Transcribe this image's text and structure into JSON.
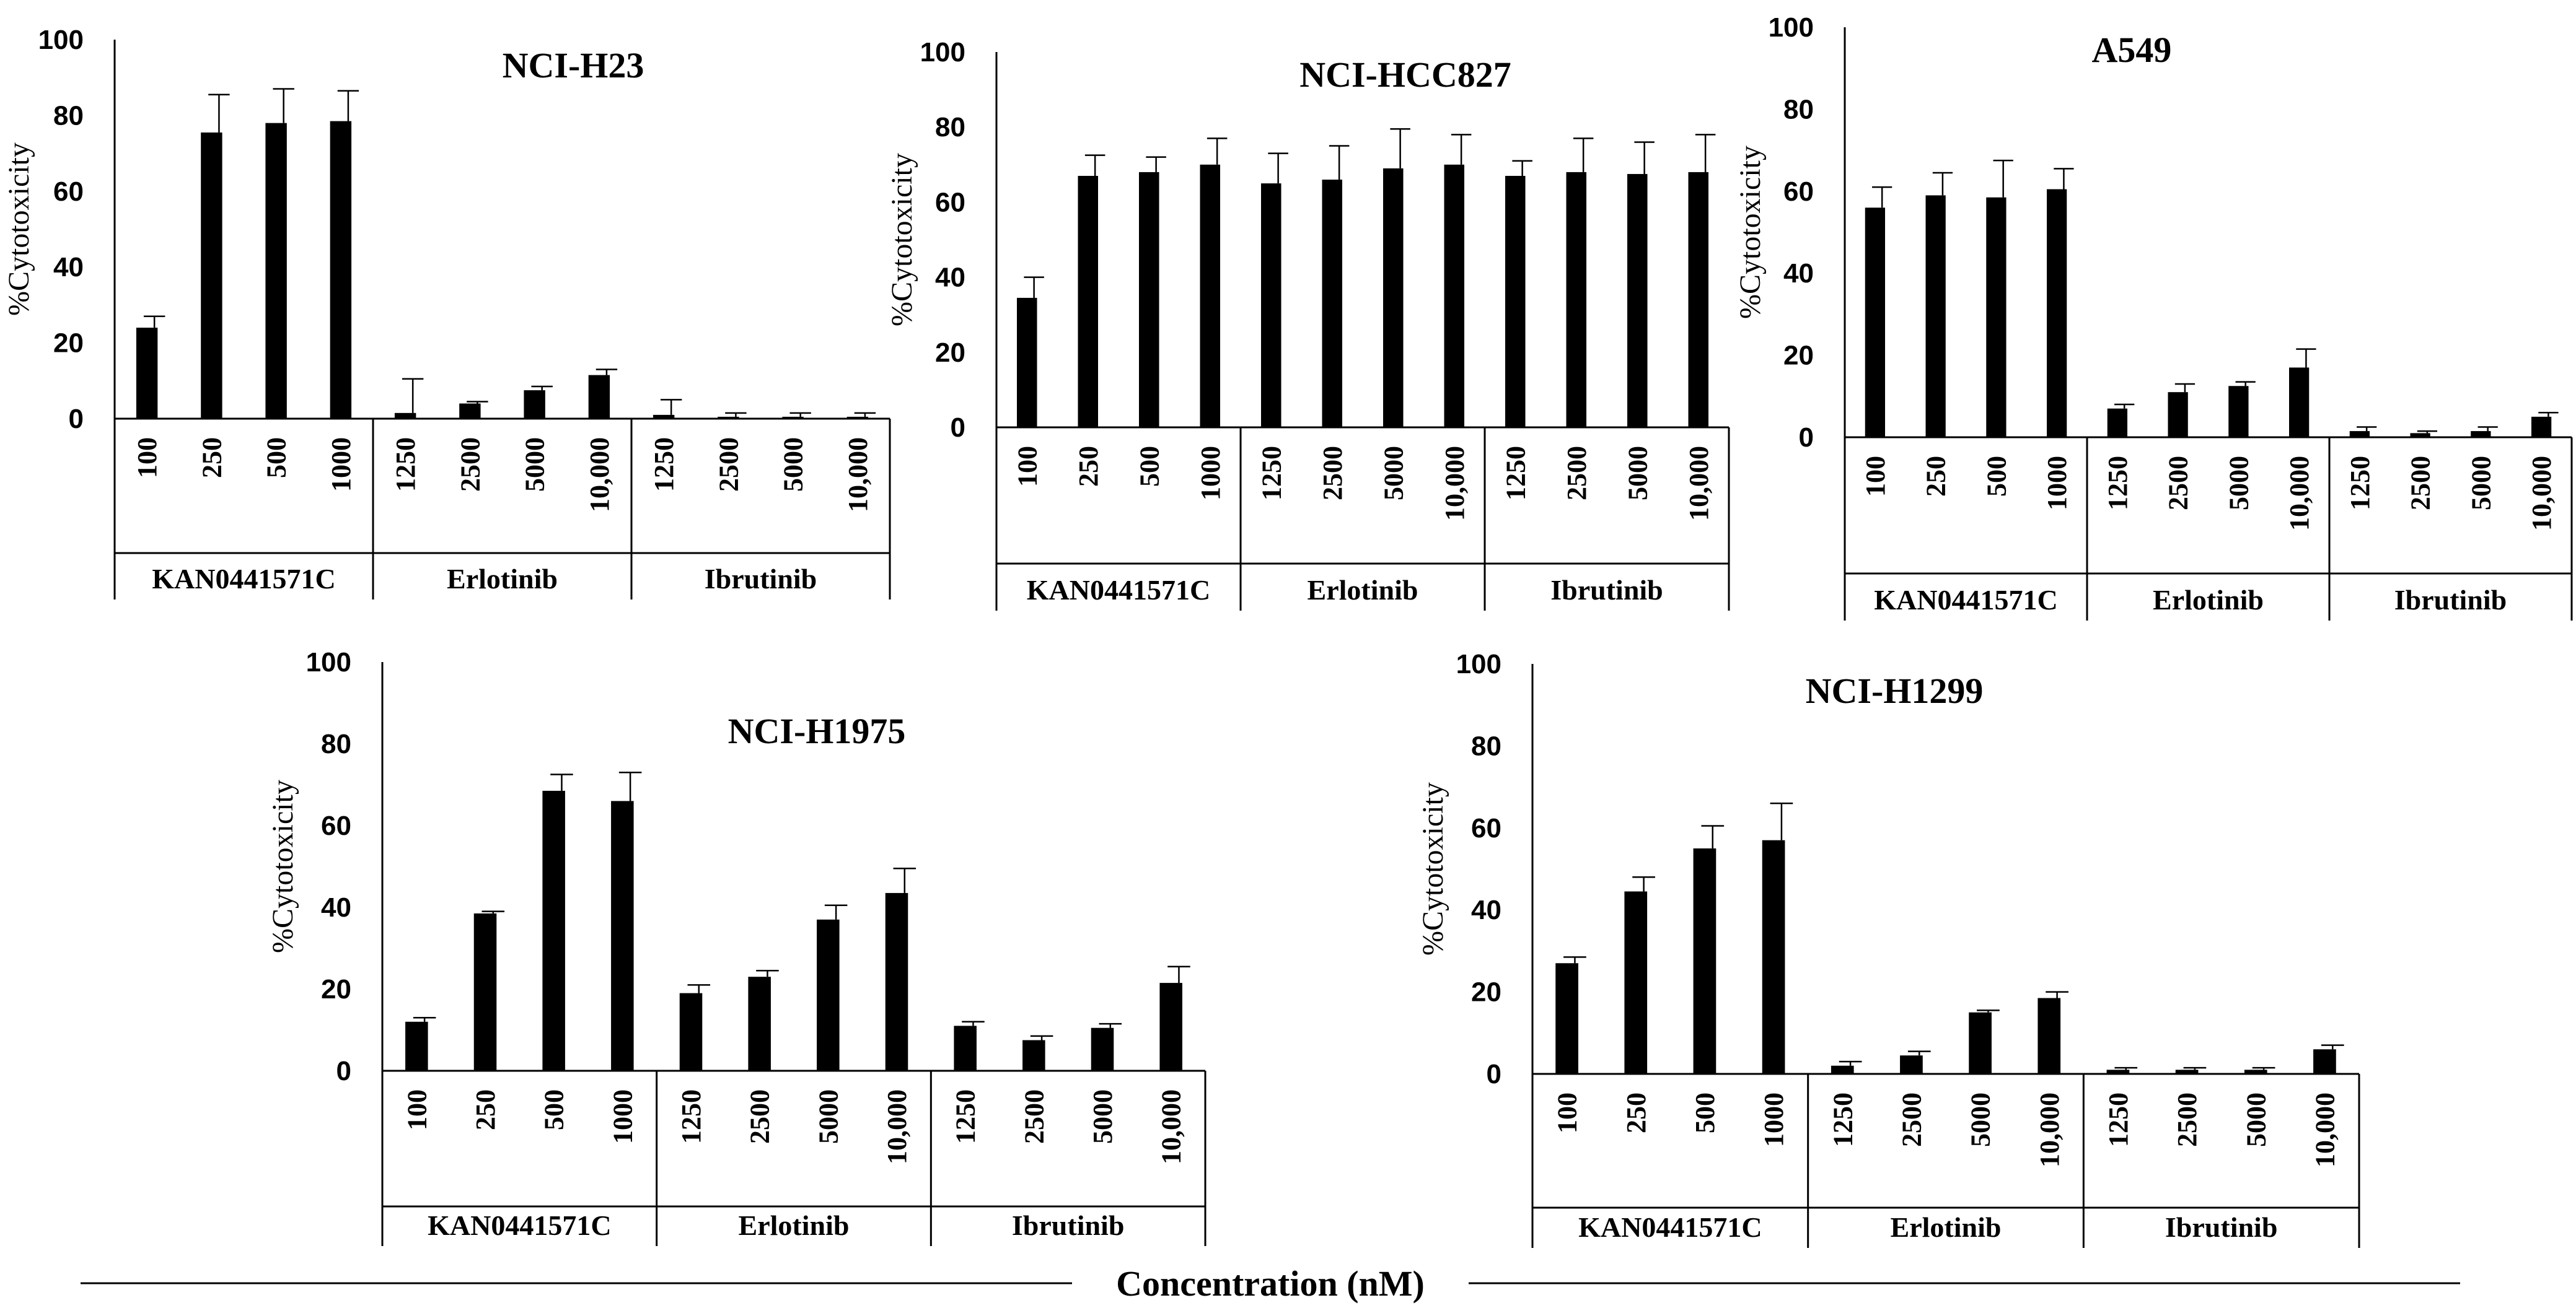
{
  "chart_data": [
    {
      "type": "bar",
      "title": "NCI-H23",
      "ylabel": "%Cytotoxicity",
      "ylim": [
        0,
        100
      ],
      "yticks": [
        "0",
        "20",
        "40",
        "60",
        "80",
        "100"
      ],
      "groups": [
        "KAN0441571C",
        "Erlotinib",
        "Ibrutinib"
      ],
      "categories": [
        "100",
        "250",
        "500",
        "1000",
        "1250",
        "2500",
        "5000",
        "10,000",
        "1250",
        "2500",
        "5000",
        "10,000"
      ],
      "values": [
        24,
        75.5,
        78,
        78.5,
        1.5,
        4,
        7.5,
        11.5,
        1,
        0.5,
        0.5,
        0.5
      ],
      "errors": [
        3,
        10,
        9,
        8,
        9,
        0.5,
        1,
        1.5,
        4,
        1,
        1,
        1
      ]
    },
    {
      "type": "bar",
      "title": "NCI-HCC827",
      "ylabel": "%Cytotoxicity",
      "ylim": [
        0,
        100
      ],
      "yticks": [
        "0",
        "20",
        "40",
        "60",
        "80",
        "100"
      ],
      "groups": [
        "KAN0441571C",
        "Erlotinib",
        "Ibrutinib"
      ],
      "categories": [
        "100",
        "250",
        "500",
        "1000",
        "1250",
        "2500",
        "5000",
        "10,000",
        "1250",
        "2500",
        "5000",
        "10,000"
      ],
      "values": [
        34.5,
        67,
        68,
        70,
        65,
        66,
        69,
        70,
        67,
        68,
        67.5,
        68
      ],
      "errors": [
        5.5,
        5.5,
        4,
        7,
        8,
        9,
        10.5,
        8,
        4,
        9,
        8.5,
        10
      ]
    },
    {
      "type": "bar",
      "title": "A549",
      "ylabel": "%Cytotoxicity",
      "ylim": [
        0,
        100
      ],
      "yticks": [
        "0",
        "20",
        "40",
        "60",
        "80",
        "100"
      ],
      "groups": [
        "KAN0441571C",
        "Erlotinib",
        "Ibrutinib"
      ],
      "categories": [
        "100",
        "250",
        "500",
        "1000",
        "1250",
        "2500",
        "5000",
        "10,000",
        "1250",
        "2500",
        "5000",
        "10,000"
      ],
      "values": [
        56,
        59,
        58.5,
        60.5,
        7,
        11,
        12.5,
        17,
        1.5,
        1,
        1.5,
        5
      ],
      "errors": [
        5,
        5.5,
        9,
        5,
        1,
        2,
        1,
        4.5,
        1,
        0.5,
        1,
        1
      ]
    },
    {
      "type": "bar",
      "title": "NCI-H1975",
      "ylabel": "%Cytotoxicity",
      "ylim": [
        0,
        100
      ],
      "yticks": [
        "0",
        "20",
        "40",
        "60",
        "80",
        "100"
      ],
      "groups": [
        "KAN0441571C",
        "Erlotinib",
        "Ibrutinib"
      ],
      "categories": [
        "100",
        "250",
        "500",
        "1000",
        "1250",
        "2500",
        "5000",
        "10,000",
        "1250",
        "2500",
        "5000",
        "10,000"
      ],
      "values": [
        12,
        38.5,
        68.5,
        66,
        19,
        23,
        37,
        43.5,
        11,
        7.5,
        10.5,
        21.5
      ],
      "errors": [
        1,
        0.5,
        4,
        7,
        2,
        1.5,
        3.5,
        6,
        1,
        1,
        1,
        4
      ]
    },
    {
      "type": "bar",
      "title": "NCI-H1299",
      "ylabel": "%Cytotoxicity",
      "ylim": [
        0,
        100
      ],
      "yticks": [
        "0",
        "20",
        "40",
        "60",
        "80",
        "100"
      ],
      "groups": [
        "KAN0441571C",
        "Erlotinib",
        "Ibrutinib"
      ],
      "categories": [
        "100",
        "250",
        "500",
        "1000",
        "1250",
        "2500",
        "5000",
        "10,000",
        "1250",
        "2500",
        "5000",
        "10,000"
      ],
      "values": [
        27,
        44.5,
        55,
        57,
        2,
        4.5,
        15,
        18.5,
        1,
        1,
        1,
        6
      ],
      "errors": [
        1.5,
        3.5,
        5.5,
        9,
        1,
        1,
        0.5,
        1.5,
        0.5,
        0.5,
        0.5,
        1
      ]
    }
  ],
  "footer": {
    "xlabel": "Concentration (nM)"
  },
  "colors": {
    "bar": "#000000",
    "axis": "#000000",
    "background": "#ffffff"
  }
}
